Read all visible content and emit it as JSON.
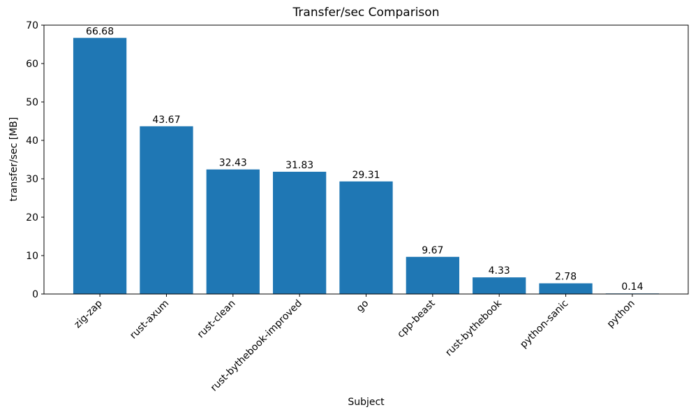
{
  "chart_data": {
    "type": "bar",
    "title": "Transfer/sec Comparison",
    "xlabel": "Subject",
    "ylabel": "transfer/sec [MB]",
    "categories": [
      "zig-zap",
      "rust-axum",
      "rust-clean",
      "rust-bythebook-improved",
      "go",
      "cpp-beast",
      "rust-bythebook",
      "python-sanic",
      "python"
    ],
    "values": [
      66.68,
      43.67,
      32.43,
      31.83,
      29.31,
      9.67,
      4.33,
      2.78,
      0.14
    ],
    "value_labels": [
      "66.68",
      "43.67",
      "32.43",
      "31.83",
      "29.31",
      "9.67",
      "4.33",
      "2.78",
      "0.14"
    ],
    "ylim": [
      0,
      70
    ],
    "yticks": [
      0,
      10,
      20,
      30,
      40,
      50,
      60,
      70
    ],
    "xtick_rotation_deg": 45,
    "grid": "off",
    "legend": "none",
    "bar_color": "#1f77b4",
    "axis_color": "#000000",
    "text_color": "#000000"
  }
}
